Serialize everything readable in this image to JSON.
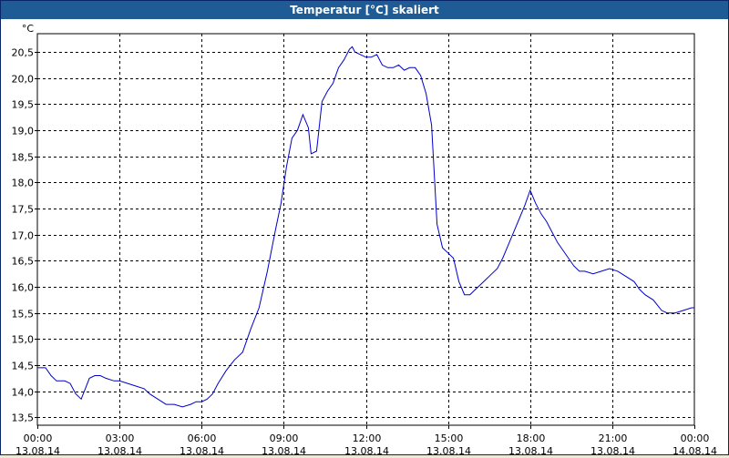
{
  "window": {
    "title": "Temperatur [°C] skaliert"
  },
  "colors": {
    "titlebar": "#1f5b94",
    "line": "#0000cc",
    "grid": "#000000",
    "background": "#ffffff"
  },
  "chart_data": {
    "type": "line",
    "title": "Temperatur [°C] skaliert",
    "ylabel": "°C",
    "xlabel": "",
    "ylim": [
      13.35,
      20.85
    ],
    "xlim": [
      0,
      24
    ],
    "grid": true,
    "grid_style": "dashed",
    "yticks": [
      "13,5",
      "14,0",
      "14,5",
      "15,0",
      "15,5",
      "16,0",
      "16,5",
      "17,0",
      "17,5",
      "18,0",
      "18,5",
      "19,0",
      "19,5",
      "20,0",
      "20,5"
    ],
    "ytick_values": [
      13.5,
      14.0,
      14.5,
      15.0,
      15.5,
      16.0,
      16.5,
      17.0,
      17.5,
      18.0,
      18.5,
      19.0,
      19.5,
      20.0,
      20.5
    ],
    "xticks": [
      {
        "time": "00:00",
        "date": "13.08.14",
        "hour": 0
      },
      {
        "time": "03:00",
        "date": "13.08.14",
        "hour": 3
      },
      {
        "time": "06:00",
        "date": "13.08.14",
        "hour": 6
      },
      {
        "time": "09:00",
        "date": "13.08.14",
        "hour": 9
      },
      {
        "time": "12:00",
        "date": "13.08.14",
        "hour": 12
      },
      {
        "time": "15:00",
        "date": "13.08.14",
        "hour": 15
      },
      {
        "time": "18:00",
        "date": "13.08.14",
        "hour": 18
      },
      {
        "time": "21:00",
        "date": "13.08.14",
        "hour": 21
      },
      {
        "time": "00:00",
        "date": "14.08.14",
        "hour": 24
      }
    ],
    "series": [
      {
        "x": [
          0,
          0.3,
          0.5,
          0.7,
          0.9,
          1.0,
          1.2,
          1.4,
          1.6,
          1.75,
          1.9,
          2.1,
          2.3,
          2.5,
          2.8,
          3.0,
          3.3,
          3.6,
          3.9,
          4.1,
          4.4,
          4.7,
          5.0,
          5.3,
          5.6,
          5.8,
          6.0,
          6.2,
          6.4,
          6.6,
          6.9,
          7.2,
          7.5,
          7.8,
          8.1,
          8.4,
          8.7,
          8.9,
          9.1,
          9.3,
          9.5,
          9.7,
          9.9,
          10.0,
          10.2,
          10.4,
          10.6,
          10.8,
          11.0,
          11.2,
          11.4,
          11.5,
          11.6,
          11.8,
          12.0,
          12.2,
          12.4,
          12.6,
          12.8,
          13.0,
          13.2,
          13.4,
          13.6,
          13.8,
          14.0,
          14.2,
          14.4,
          14.6,
          14.8,
          15.0,
          15.2,
          15.4,
          15.6,
          15.8,
          16.0,
          16.2,
          16.4,
          16.6,
          16.8,
          17.0,
          17.2,
          17.4,
          17.6,
          17.8,
          18.0,
          18.2,
          18.4,
          18.6,
          18.8,
          19.0,
          19.2,
          19.4,
          19.6,
          19.8,
          20.0,
          20.3,
          20.6,
          20.9,
          21.2,
          21.5,
          21.8,
          22.0,
          22.2,
          22.5,
          22.8,
          23.0,
          23.3,
          23.6,
          23.9,
          24.0
        ],
        "y": [
          14.45,
          14.45,
          14.3,
          14.2,
          14.2,
          14.2,
          14.15,
          13.95,
          13.85,
          14.05,
          14.25,
          14.3,
          14.3,
          14.25,
          14.2,
          14.2,
          14.15,
          14.1,
          14.05,
          13.95,
          13.85,
          13.75,
          13.75,
          13.7,
          13.75,
          13.8,
          13.8,
          13.85,
          13.95,
          14.15,
          14.4,
          14.6,
          14.75,
          15.2,
          15.6,
          16.3,
          17.1,
          17.6,
          18.3,
          18.85,
          19.0,
          19.3,
          19.05,
          18.55,
          18.6,
          19.55,
          19.75,
          19.9,
          20.2,
          20.35,
          20.55,
          20.6,
          20.5,
          20.45,
          20.4,
          20.4,
          20.45,
          20.25,
          20.2,
          20.2,
          20.25,
          20.15,
          20.2,
          20.2,
          20.05,
          19.7,
          19.1,
          17.2,
          16.75,
          16.65,
          16.55,
          16.1,
          15.85,
          15.85,
          15.95,
          16.05,
          16.15,
          16.25,
          16.35,
          16.55,
          16.8,
          17.05,
          17.3,
          17.55,
          17.85,
          17.6,
          17.4,
          17.25,
          17.05,
          16.85,
          16.7,
          16.55,
          16.4,
          16.3,
          16.3,
          16.25,
          16.3,
          16.35,
          16.3,
          16.2,
          16.1,
          15.95,
          15.85,
          15.75,
          15.55,
          15.5,
          15.5,
          15.55,
          15.6,
          15.6
        ]
      }
    ]
  }
}
